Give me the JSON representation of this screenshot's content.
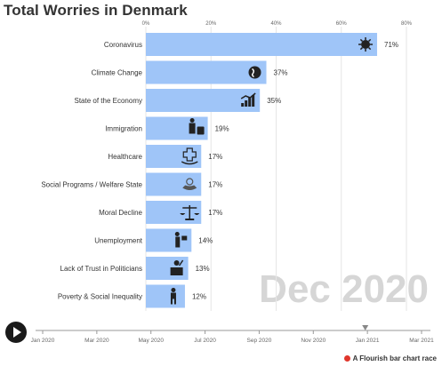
{
  "title": "Total Worries in Denmark",
  "period_label": "Dec 2020",
  "credit": "A Flourish bar chart race",
  "colors": {
    "bar": "#9fc5f8",
    "text": "#333333",
    "axis": "#999999",
    "period": "#d6d6d6",
    "credit_logo": "#e0362c"
  },
  "timeline": {
    "ticks": [
      "Jan 2020",
      "Mar 2020",
      "May 2020",
      "Jul 2020",
      "Sep 2020",
      "Nov 2020",
      "Jan 2021",
      "Mar 2021"
    ],
    "current": "Dec 2020"
  },
  "chart_data": {
    "type": "bar",
    "orientation": "horizontal",
    "categories": [
      "Coronavirus",
      "Climate Change",
      "State of the Economy",
      "Immigration",
      "Healthcare",
      "Social Programs / Welfare State",
      "Moral Decline",
      "Unemployment",
      "Lack of Trust in Politicians",
      "Poverty & Social Inequality"
    ],
    "values": [
      71,
      37,
      35,
      19,
      17,
      17,
      17,
      14,
      13,
      12
    ],
    "value_labels": [
      "71%",
      "37%",
      "35%",
      "19%",
      "17%",
      "17%",
      "17%",
      "14%",
      "13%",
      "12%"
    ],
    "icons": [
      "coronavirus-icon",
      "globe-icon",
      "economy-chart-icon",
      "immigration-icon",
      "healthcare-icon",
      "welfare-icon",
      "scales-icon",
      "unemployment-icon",
      "politician-icon",
      "poverty-icon"
    ],
    "x_ticks": [
      0,
      20,
      40,
      60,
      80
    ],
    "x_tick_labels": [
      "0%",
      "20%",
      "40%",
      "60%",
      "80%"
    ],
    "xlim": [
      0,
      80
    ],
    "grid": true,
    "title": "Total Worries in Denmark"
  }
}
